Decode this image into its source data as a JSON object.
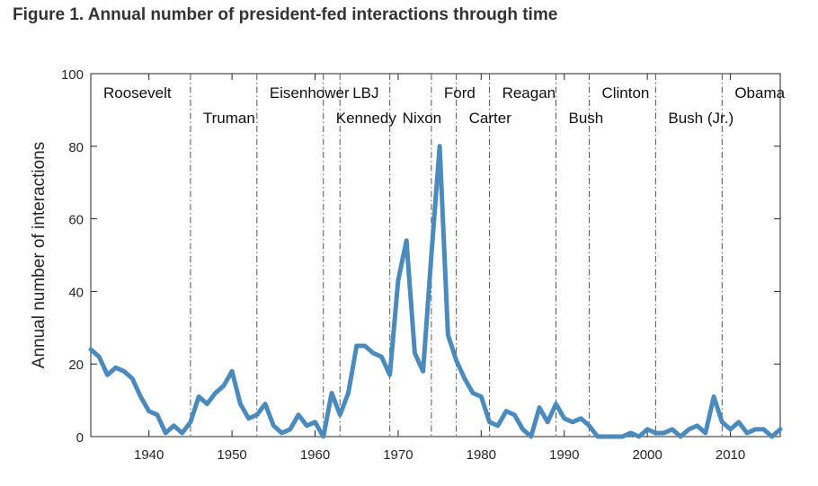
{
  "figure_title": "Figure 1. Annual number of president-fed interactions through time",
  "chart_data": {
    "type": "line",
    "title": "Figure 1. Annual number of president-fed interactions through time",
    "xlabel": "",
    "ylabel": "Annual number of interactions",
    "xlim": [
      1933,
      2016
    ],
    "ylim": [
      0,
      100
    ],
    "grid": false,
    "x_ticks": [
      1940,
      1950,
      1960,
      1970,
      1980,
      1990,
      2000,
      2010
    ],
    "y_ticks": [
      0,
      20,
      40,
      60,
      80,
      100
    ],
    "line_color": "#4a8abd",
    "series": [
      {
        "x": [
          1933,
          1934,
          1935,
          1936,
          1937,
          1938,
          1939,
          1940,
          1941,
          1942,
          1943,
          1944,
          1945,
          1946,
          1947,
          1948,
          1949,
          1950,
          1951,
          1952,
          1953,
          1954,
          1955,
          1956,
          1957,
          1958,
          1959,
          1960,
          1961,
          1962,
          1963,
          1964,
          1965,
          1966,
          1967,
          1968,
          1969,
          1970,
          1971,
          1972,
          1973,
          1974,
          1975,
          1976,
          1977,
          1978,
          1979,
          1980,
          1981,
          1982,
          1983,
          1984,
          1985,
          1986,
          1987,
          1988,
          1989,
          1990,
          1991,
          1992,
          1993,
          1994,
          1995,
          1996,
          1997,
          1998,
          1999,
          2000,
          2001,
          2002,
          2003,
          2004,
          2005,
          2006,
          2007,
          2008,
          2009,
          2010,
          2011,
          2012,
          2013,
          2014,
          2015,
          2016
        ],
        "values": [
          24,
          22,
          17,
          19,
          18,
          16,
          11,
          7,
          6,
          1,
          3,
          1,
          4,
          11,
          9,
          12,
          14,
          18,
          9,
          5,
          6,
          9,
          3,
          1,
          2,
          6,
          3,
          4,
          0,
          12,
          6,
          12,
          25,
          25,
          23,
          22,
          17,
          43,
          54,
          23,
          18,
          50,
          80,
          28,
          21,
          16,
          12,
          11,
          4,
          3,
          7,
          6,
          2,
          0,
          8,
          4,
          9,
          5,
          4,
          5,
          3,
          0,
          0,
          0,
          0,
          1,
          0,
          2,
          1,
          1,
          2,
          0,
          2,
          3,
          1,
          11,
          4,
          2,
          4,
          1,
          2,
          2,
          0,
          2
        ]
      }
    ],
    "presidents": [
      {
        "name": "Roosevelt",
        "start": 1933,
        "row": 1
      },
      {
        "name": "Truman",
        "start": 1945,
        "row": 2
      },
      {
        "name": "Eisenhower",
        "start": 1953,
        "row": 1
      },
      {
        "name": "Kennedy",
        "start": 1961,
        "row": 2
      },
      {
        "name": "LBJ",
        "start": 1963,
        "row": 1
      },
      {
        "name": "Nixon",
        "start": 1969,
        "row": 2
      },
      {
        "name": "Ford",
        "start": 1974,
        "row": 1
      },
      {
        "name": "Carter",
        "start": 1977,
        "row": 2
      },
      {
        "name": "Reagan",
        "start": 1981,
        "row": 1
      },
      {
        "name": "Bush",
        "start": 1989,
        "row": 2
      },
      {
        "name": "Clinton",
        "start": 1993,
        "row": 1
      },
      {
        "name": "Bush (Jr.)",
        "start": 2001,
        "row": 2
      },
      {
        "name": "Obama",
        "start": 2009,
        "row": 1
      }
    ]
  }
}
